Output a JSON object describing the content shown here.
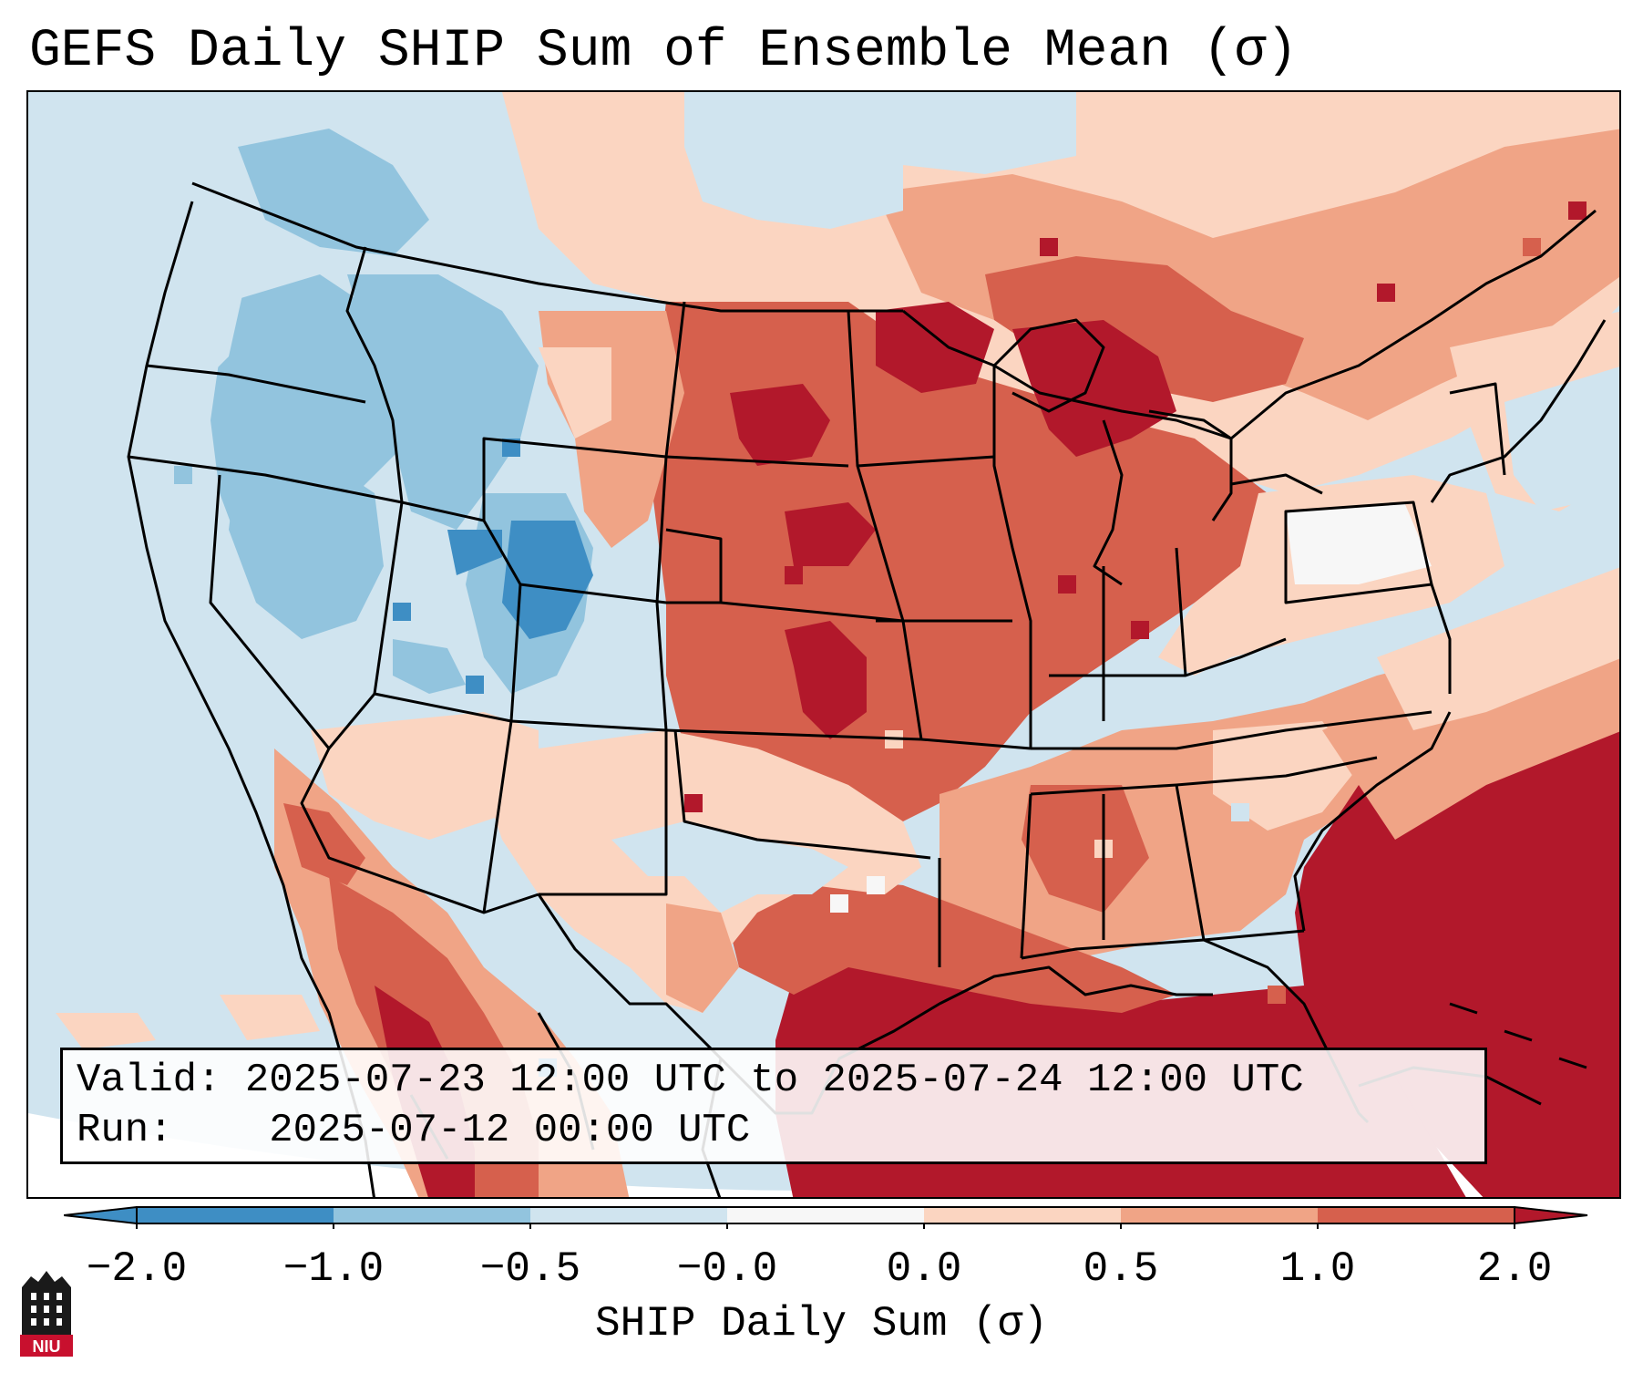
{
  "title": "GEFS Daily SHIP Sum of Ensemble Mean (σ)",
  "info": {
    "valid_label": "Valid:",
    "valid_value": "2025-07-23 12:00 UTC to 2025-07-24 12:00 UTC",
    "run_label": "Run:",
    "run_value": "2025-07-12 00:00 UTC"
  },
  "colorbar": {
    "label": "SHIP Daily Sum (σ)",
    "ticks": [
      "−2.0",
      "−1.0",
      "−0.5",
      "−0.0",
      "0.0",
      "0.5",
      "1.0",
      "2.0"
    ],
    "colors": [
      "#3e8ec4",
      "#92c4de",
      "#d0e4ef",
      "#f7f7f7",
      "#fbd5c1",
      "#f0a486",
      "#d6604d",
      "#b2182b"
    ],
    "extend": "both"
  },
  "logo": {
    "text": "NIU"
  },
  "map": {
    "region": "Continental United States",
    "projection": "Lambert Conformal"
  }
}
